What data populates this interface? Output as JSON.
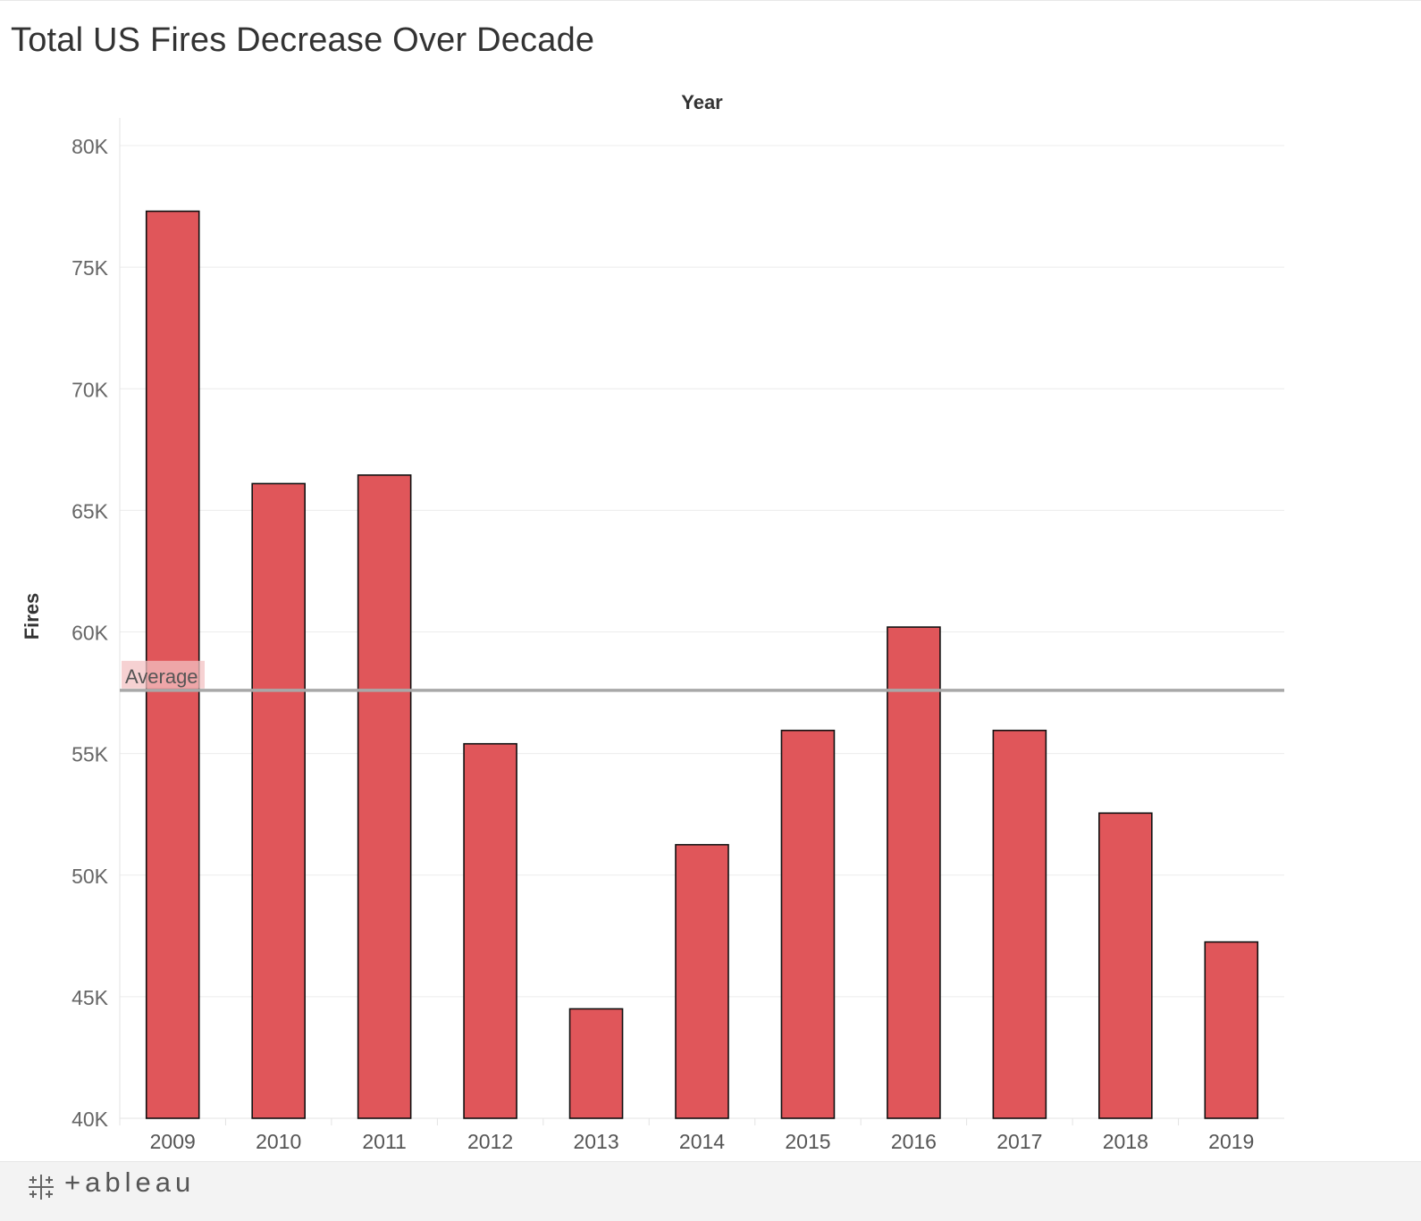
{
  "title": "Total US Fires Decrease Over Decade",
  "footer": {
    "brand_text": "+ableau"
  },
  "colors": {
    "bar": "#e0565a",
    "bar_border": "#111111",
    "average_line": "#a8a8a8",
    "grid": "#ececec"
  },
  "chart_data": {
    "type": "bar",
    "xlabel": "Year",
    "ylabel": "Fires",
    "categories": [
      "2009",
      "2010",
      "2011",
      "2012",
      "2013",
      "2014",
      "2015",
      "2016",
      "2017",
      "2018",
      "2019"
    ],
    "values": [
      77300,
      66100,
      66450,
      55400,
      44500,
      51250,
      55950,
      60200,
      55950,
      52550,
      47250
    ],
    "ylim": [
      40000,
      81000
    ],
    "yticks": [
      40000,
      45000,
      50000,
      55000,
      60000,
      65000,
      70000,
      75000,
      80000
    ],
    "ytick_labels": [
      "40K",
      "45K",
      "50K",
      "55K",
      "60K",
      "65K",
      "70K",
      "75K",
      "80K"
    ],
    "reference_line": {
      "label": "Average",
      "value": 57600
    },
    "grid": true,
    "legend": "none"
  }
}
